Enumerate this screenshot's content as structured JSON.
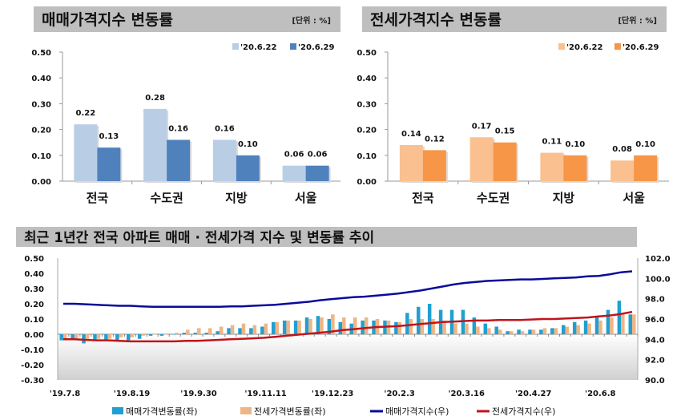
{
  "chart_data": [
    {
      "type": "bar",
      "title": "매매가격지수 변동률",
      "unit": "[단위 : %]",
      "categories": [
        "전국",
        "수도권",
        "지방",
        "서울"
      ],
      "series": [
        {
          "name": "'20.6.22",
          "values": [
            0.22,
            0.28,
            0.16,
            0.06
          ],
          "color": "#b9cde5"
        },
        {
          "name": "'20.6.29",
          "values": [
            0.13,
            0.16,
            0.1,
            0.06
          ],
          "color": "#4f81bd"
        }
      ],
      "ylim": [
        0,
        0.5
      ],
      "yticks": [
        "0.00",
        "0.10",
        "0.20",
        "0.30",
        "0.40",
        "0.50"
      ],
      "legend": "top-right",
      "grid": false
    },
    {
      "type": "bar",
      "title": "전세가격지수 변동률",
      "unit": "[단위 : %]",
      "categories": [
        "전국",
        "수도권",
        "지방",
        "서울"
      ],
      "series": [
        {
          "name": "'20.6.22",
          "values": [
            0.14,
            0.17,
            0.11,
            0.08
          ],
          "color": "#fac090"
        },
        {
          "name": "'20.6.29",
          "values": [
            0.12,
            0.15,
            0.1,
            0.1
          ],
          "color": "#f79646"
        }
      ],
      "ylim": [
        0,
        0.5
      ],
      "yticks": [
        "0.00",
        "0.10",
        "0.20",
        "0.30",
        "0.40",
        "0.50"
      ],
      "legend": "top-right",
      "grid": false
    },
    {
      "type": "bar+line",
      "title": "최근 1년간 전국 아파트 매매 · 전세가격 지수 및 변동률 추이",
      "xtick_labels": [
        "'19.7.8",
        "'19.8.19",
        "'19.9.30",
        "'19.11.11",
        "'19.12.23",
        "'20.2.3",
        "'20.3.16",
        "'20.4.27",
        "'20.6.8"
      ],
      "ylim_left": [
        -0.3,
        0.5
      ],
      "yticks_left": [
        "-0.30",
        "-0.20",
        "-0.10",
        "0.00",
        "0.10",
        "0.20",
        "0.30",
        "0.40",
        "0.50"
      ],
      "ylim_right": [
        90,
        102
      ],
      "yticks_right": [
        "90.0",
        "92.0",
        "94.0",
        "96.0",
        "98.0",
        "100.0",
        "102.0"
      ],
      "legend": "bottom",
      "series": [
        {
          "name": "매매가격변동률(좌)",
          "kind": "bar",
          "axis": "left",
          "color": "#1fa0d0",
          "values": [
            -0.04,
            -0.03,
            -0.06,
            -0.04,
            -0.04,
            -0.04,
            -0.04,
            -0.03,
            -0.01,
            -0.01,
            0.0,
            0.01,
            0.01,
            0.01,
            0.02,
            0.04,
            0.04,
            0.04,
            0.05,
            0.08,
            0.09,
            0.09,
            0.11,
            0.12,
            0.1,
            0.08,
            0.07,
            0.09,
            0.09,
            0.09,
            0.08,
            0.14,
            0.18,
            0.2,
            0.16,
            0.16,
            0.16,
            0.11,
            0.07,
            0.05,
            0.02,
            0.03,
            0.03,
            0.03,
            0.04,
            0.06,
            0.08,
            0.09,
            0.12,
            0.16,
            0.22,
            0.13
          ]
        },
        {
          "name": "전세가격변동률(좌)",
          "kind": "bar",
          "axis": "left",
          "color": "#f0b584",
          "values": [
            -0.03,
            -0.03,
            -0.03,
            -0.03,
            -0.03,
            -0.02,
            -0.02,
            -0.01,
            0.0,
            0.0,
            0.01,
            0.03,
            0.04,
            0.04,
            0.05,
            0.06,
            0.07,
            0.06,
            0.07,
            0.08,
            0.09,
            0.09,
            0.1,
            0.11,
            0.13,
            0.11,
            0.11,
            0.11,
            0.1,
            0.09,
            0.08,
            0.1,
            0.1,
            0.1,
            0.09,
            0.07,
            0.07,
            0.05,
            0.04,
            0.03,
            0.02,
            0.02,
            0.03,
            0.04,
            0.04,
            0.05,
            0.06,
            0.07,
            0.09,
            0.11,
            0.14,
            0.13
          ]
        },
        {
          "name": "매매가격지수(우)",
          "kind": "line",
          "axis": "right",
          "color": "#0a0a9a",
          "values": [
            97.5,
            97.5,
            97.45,
            97.4,
            97.35,
            97.3,
            97.3,
            97.25,
            97.2,
            97.2,
            97.2,
            97.2,
            97.2,
            97.2,
            97.2,
            97.25,
            97.25,
            97.3,
            97.35,
            97.4,
            97.5,
            97.6,
            97.7,
            97.85,
            97.95,
            98.05,
            98.15,
            98.2,
            98.3,
            98.4,
            98.5,
            98.65,
            98.8,
            99.0,
            99.2,
            99.4,
            99.55,
            99.65,
            99.75,
            99.8,
            99.85,
            99.9,
            99.9,
            99.95,
            100.0,
            100.05,
            100.1,
            100.2,
            100.25,
            100.4,
            100.6,
            100.7
          ]
        },
        {
          "name": "전세가격지수(우)",
          "kind": "line",
          "axis": "right",
          "color": "#c0141c",
          "values": [
            94.0,
            94.0,
            93.95,
            93.9,
            93.9,
            93.85,
            93.8,
            93.8,
            93.8,
            93.8,
            93.8,
            93.85,
            93.85,
            93.9,
            93.95,
            94.0,
            94.05,
            94.1,
            94.15,
            94.25,
            94.35,
            94.45,
            94.55,
            94.65,
            94.75,
            94.9,
            95.0,
            95.1,
            95.2,
            95.25,
            95.3,
            95.4,
            95.5,
            95.6,
            95.7,
            95.75,
            95.8,
            95.85,
            95.85,
            95.9,
            95.9,
            95.9,
            95.95,
            96.0,
            96.0,
            96.05,
            96.1,
            96.15,
            96.25,
            96.35,
            96.5,
            96.7
          ]
        }
      ]
    }
  ]
}
